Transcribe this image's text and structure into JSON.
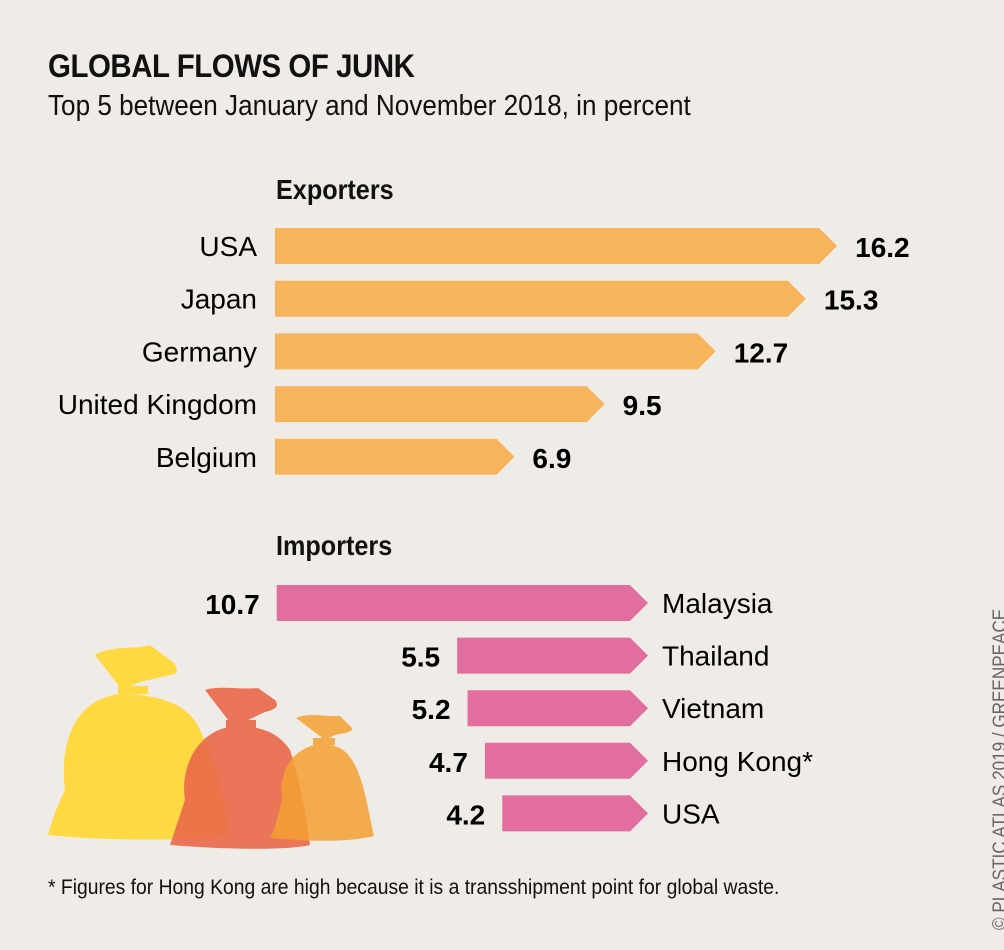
{
  "title": "GLOBAL FLOWS OF JUNK",
  "subtitle": "Top 5 between January and November 2018, in percent",
  "footnote": "* Figures for Hong Kong are high because it is a transshipment point for global waste.",
  "credit": "© PLASTIC ATLAS 2019 / GREENPEACE",
  "colors": {
    "exporters": "#f7b45d",
    "importers": "#e26d9f",
    "background": "#efece7"
  },
  "chart_data": [
    {
      "type": "bar",
      "orientation": "horizontal",
      "title": "Exporters",
      "categories": [
        "USA",
        "Japan",
        "Germany",
        "United Kingdom",
        "Belgium"
      ],
      "values": [
        16.2,
        15.3,
        12.7,
        9.5,
        6.9
      ],
      "unit": "percent"
    },
    {
      "type": "bar",
      "orientation": "horizontal",
      "title": "Importers",
      "categories": [
        "Malaysia",
        "Thailand",
        "Vietnam",
        "Hong Kong*",
        "USA"
      ],
      "values": [
        10.7,
        5.5,
        5.2,
        4.7,
        4.2
      ],
      "unit": "percent"
    }
  ]
}
